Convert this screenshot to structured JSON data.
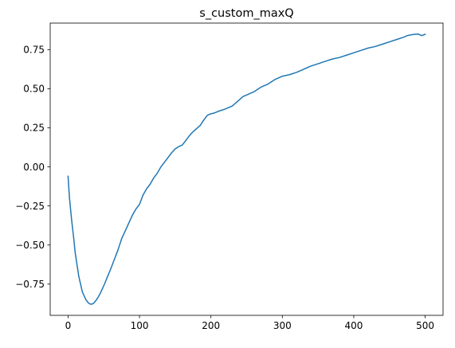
{
  "chart_data": {
    "type": "line",
    "title": "s_custom_maxQ",
    "xlabel": "",
    "ylabel": "",
    "xlim": [
      -25,
      525
    ],
    "ylim": [
      -0.95,
      0.92
    ],
    "x_ticks": [
      0,
      100,
      200,
      300,
      400,
      500
    ],
    "x_tick_labels": [
      "0",
      "100",
      "200",
      "300",
      "400",
      "500"
    ],
    "y_ticks": [
      -0.75,
      -0.5,
      -0.25,
      0.0,
      0.25,
      0.5,
      0.75
    ],
    "y_tick_labels": [
      "−0.75",
      "−0.50",
      "−0.25",
      "0.00",
      "0.25",
      "0.50",
      "0.75"
    ],
    "grid": false,
    "legend": "none",
    "series": [
      {
        "color": "#1f77b4",
        "x": [
          0,
          2,
          5,
          8,
          10,
          13,
          15,
          18,
          20,
          23,
          25,
          28,
          30,
          33,
          36,
          39,
          42,
          45,
          48,
          51,
          55,
          60,
          65,
          70,
          75,
          80,
          85,
          90,
          95,
          100,
          105,
          110,
          115,
          120,
          125,
          130,
          135,
          140,
          145,
          150,
          155,
          160,
          165,
          170,
          175,
          180,
          185,
          190,
          195,
          200,
          205,
          210,
          220,
          230,
          240,
          245,
          250,
          255,
          260,
          270,
          280,
          290,
          300,
          310,
          320,
          330,
          340,
          350,
          360,
          370,
          380,
          390,
          400,
          410,
          420,
          430,
          440,
          450,
          460,
          470,
          475,
          480,
          485,
          490,
          495,
          500
        ],
        "y": [
          -0.06,
          -0.2,
          -0.34,
          -0.46,
          -0.55,
          -0.64,
          -0.7,
          -0.76,
          -0.8,
          -0.83,
          -0.85,
          -0.868,
          -0.876,
          -0.879,
          -0.872,
          -0.855,
          -0.835,
          -0.81,
          -0.78,
          -0.75,
          -0.705,
          -0.65,
          -0.59,
          -0.53,
          -0.46,
          -0.41,
          -0.36,
          -0.31,
          -0.27,
          -0.24,
          -0.18,
          -0.14,
          -0.11,
          -0.07,
          -0.04,
          0.0,
          0.03,
          0.06,
          0.09,
          0.115,
          0.13,
          0.14,
          0.17,
          0.2,
          0.225,
          0.245,
          0.265,
          0.3,
          0.33,
          0.34,
          0.345,
          0.355,
          0.37,
          0.39,
          0.43,
          0.45,
          0.46,
          0.47,
          0.48,
          0.51,
          0.53,
          0.56,
          0.58,
          0.59,
          0.605,
          0.625,
          0.645,
          0.66,
          0.675,
          0.69,
          0.7,
          0.715,
          0.73,
          0.745,
          0.76,
          0.77,
          0.785,
          0.8,
          0.815,
          0.83,
          0.84,
          0.845,
          0.848,
          0.85,
          0.84,
          0.848
        ]
      }
    ]
  }
}
